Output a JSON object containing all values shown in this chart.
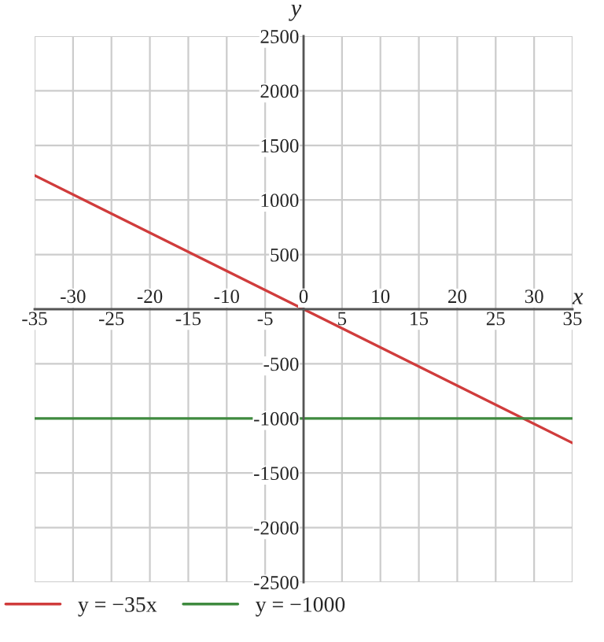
{
  "chart_data": {
    "type": "line",
    "xlabel": "x",
    "ylabel": "y",
    "x": [
      -35,
      35
    ],
    "series": [
      {
        "name": "y = −35x",
        "color": "#d03c3c",
        "values": [
          1225,
          -1225
        ]
      },
      {
        "name": "y = −1000",
        "color": "#3f8a3f",
        "values": [
          -1000,
          -1000
        ]
      }
    ],
    "xlim": [
      -35,
      35
    ],
    "ylim": [
      -2500,
      2500
    ],
    "xticks": [
      -35,
      {
        "value": -30,
        "label": null
      },
      -25,
      {
        "value": -20,
        "label": null
      },
      -15,
      {
        "value": -10,
        "label": null
      },
      -5,
      {
        "value": 0,
        "label": null
      },
      5,
      {
        "value": 10,
        "label": null
      },
      15,
      {
        "value": 20,
        "label": null
      },
      25,
      {
        "value": 30,
        "label": null
      },
      35
    ],
    "x2lim": [
      -35,
      35
    ],
    "x2ticks": [
      -30,
      -20,
      -10,
      0,
      10,
      20,
      30
    ],
    "yticks": [
      -2500,
      -2000,
      -1500,
      -1000,
      -500,
      {
        "value": 0,
        "label": null
      },
      500,
      1000,
      1500,
      2000,
      2500
    ],
    "grid": true,
    "legend": "bottom left",
    "marker": "none",
    "line_style": "solid"
  }
}
